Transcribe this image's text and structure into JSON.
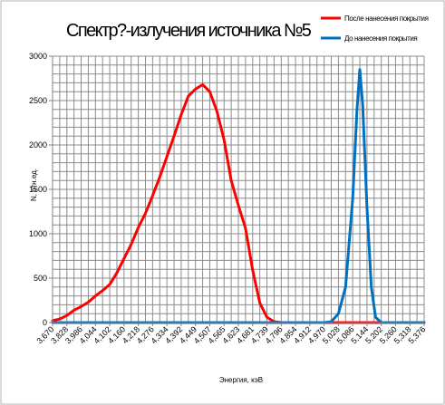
{
  "chart_data": {
    "type": "line",
    "title": "Спектр?-излучения источника №5",
    "xlabel": "Энергия, кэВ",
    "ylabel": "N, отн.ед.",
    "ylim": [
      0,
      3000
    ],
    "yticks": [
      0,
      500,
      1000,
      1500,
      2000,
      2500,
      3000
    ],
    "x_tick_labels": [
      "3,670",
      "3,828",
      "3,986",
      "4,044",
      "4,102",
      "4,160",
      "4,218",
      "4,276",
      "4,334",
      "4,392",
      "4,449",
      "4,507",
      "4,565",
      "4,623",
      "4,681",
      "4,739",
      "4,796",
      "4,854",
      "4,912",
      "4,970",
      "5,028",
      "5,086",
      "5,144",
      "5,202",
      "5,260",
      "5,318",
      "5,376"
    ],
    "legend": {
      "placement": "top-right"
    },
    "grid": true,
    "series": [
      {
        "name": "После нанесения покрытия",
        "color": "#ff0000",
        "x": [
          0,
          0.5,
          1,
          1.5,
          2,
          2.5,
          3,
          3.5,
          4,
          4.5,
          5,
          5.5,
          6,
          6.5,
          7,
          7.5,
          8,
          8.5,
          9,
          9.5,
          10,
          10.5,
          11,
          11.5,
          12,
          12.5,
          13,
          13.5,
          14,
          14.5,
          15,
          15.5,
          16,
          16.5,
          17,
          17.5,
          18,
          19,
          20,
          21,
          22,
          23,
          24,
          25,
          26
        ],
        "values": [
          20,
          40,
          80,
          140,
          180,
          230,
          300,
          360,
          430,
          560,
          720,
          880,
          1070,
          1230,
          1430,
          1640,
          1870,
          2100,
          2340,
          2550,
          2630,
          2680,
          2600,
          2380,
          2060,
          1600,
          1320,
          1060,
          590,
          220,
          60,
          10,
          0,
          0,
          0,
          0,
          0,
          0,
          0,
          0,
          0,
          0,
          0,
          0,
          0
        ]
      },
      {
        "name": "До нанесения покрытия",
        "color": "#0070c0",
        "x": [
          0,
          1,
          2,
          3,
          4,
          5,
          6,
          7,
          8,
          9,
          10,
          11,
          12,
          13,
          14,
          15,
          16,
          17,
          18,
          19,
          19.5,
          20,
          20.5,
          21,
          21.3,
          21.5,
          21.7,
          22,
          22.3,
          22.6,
          23,
          24,
          25,
          26
        ],
        "values": [
          0,
          0,
          0,
          0,
          0,
          0,
          0,
          0,
          0,
          0,
          0,
          0,
          0,
          0,
          0,
          0,
          0,
          0,
          0,
          0,
          10,
          100,
          400,
          1400,
          2400,
          2850,
          2450,
          1300,
          400,
          60,
          0,
          0,
          0,
          0
        ]
      }
    ]
  }
}
